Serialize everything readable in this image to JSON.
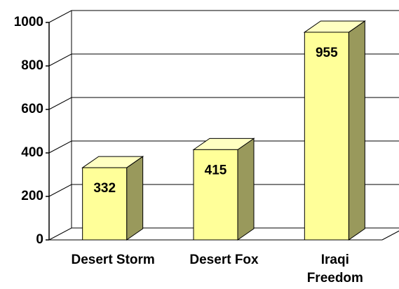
{
  "chart_data": {
    "type": "bar3d",
    "categories": [
      "Desert Storm",
      "Desert Fox",
      "Iraqi Freedom"
    ],
    "values": [
      332,
      415,
      955
    ],
    "color": "#ffff99",
    "ylim": [
      0,
      1000
    ],
    "yticks": [
      0,
      200,
      400,
      600,
      800,
      1000
    ],
    "grid": true
  }
}
